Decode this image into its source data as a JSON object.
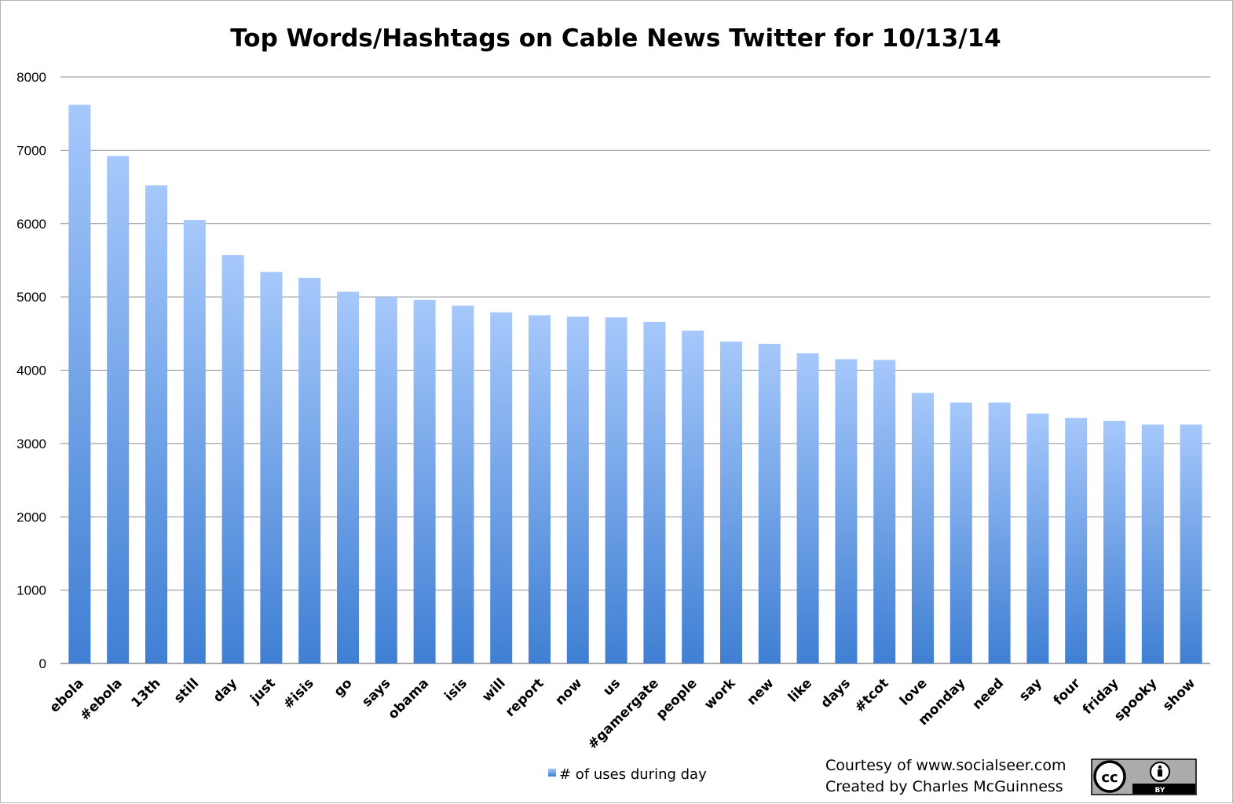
{
  "chart_data": {
    "type": "bar",
    "title": "Top Words/Hashtags on Cable News Twitter for 10/13/14",
    "xlabel": "",
    "ylabel": "",
    "ylim": [
      0,
      8000
    ],
    "yticks": [
      0,
      1000,
      2000,
      3000,
      4000,
      5000,
      6000,
      7000,
      8000
    ],
    "grid": true,
    "legend_position": "bottom",
    "categories": [
      "ebola",
      "#ebola",
      "13th",
      "still",
      "day",
      "just",
      "#isis",
      "go",
      "says",
      "obama",
      "isis",
      "will",
      "report",
      "now",
      "us",
      "#gamergate",
      "people",
      "work",
      "new",
      "like",
      "days",
      "#tcot",
      "love",
      "monday",
      "need",
      "say",
      "four",
      "friday",
      "spooky",
      "show"
    ],
    "series": [
      {
        "name": "# of uses during day",
        "color": "#6f9fe8",
        "values": [
          7620,
          6920,
          6520,
          6050,
          5570,
          5340,
          5260,
          5070,
          5000,
          4960,
          4880,
          4790,
          4750,
          4730,
          4720,
          4660,
          4540,
          4390,
          4360,
          4230,
          4150,
          4140,
          3690,
          3560,
          3560,
          3410,
          3350,
          3310,
          3260,
          3260
        ]
      }
    ],
    "colors": {
      "bar_top": "#a6c8fb",
      "bar_bottom": "#3f7fd3",
      "grid": "#8c8c8c"
    }
  },
  "credits": {
    "line1": "Courtesy of www.socialseer.com",
    "line2": "Created by Charles McGuinness"
  },
  "license_badge": {
    "icon": "creative-commons-by-icon",
    "cc_text": "cc",
    "by_text": "BY"
  }
}
